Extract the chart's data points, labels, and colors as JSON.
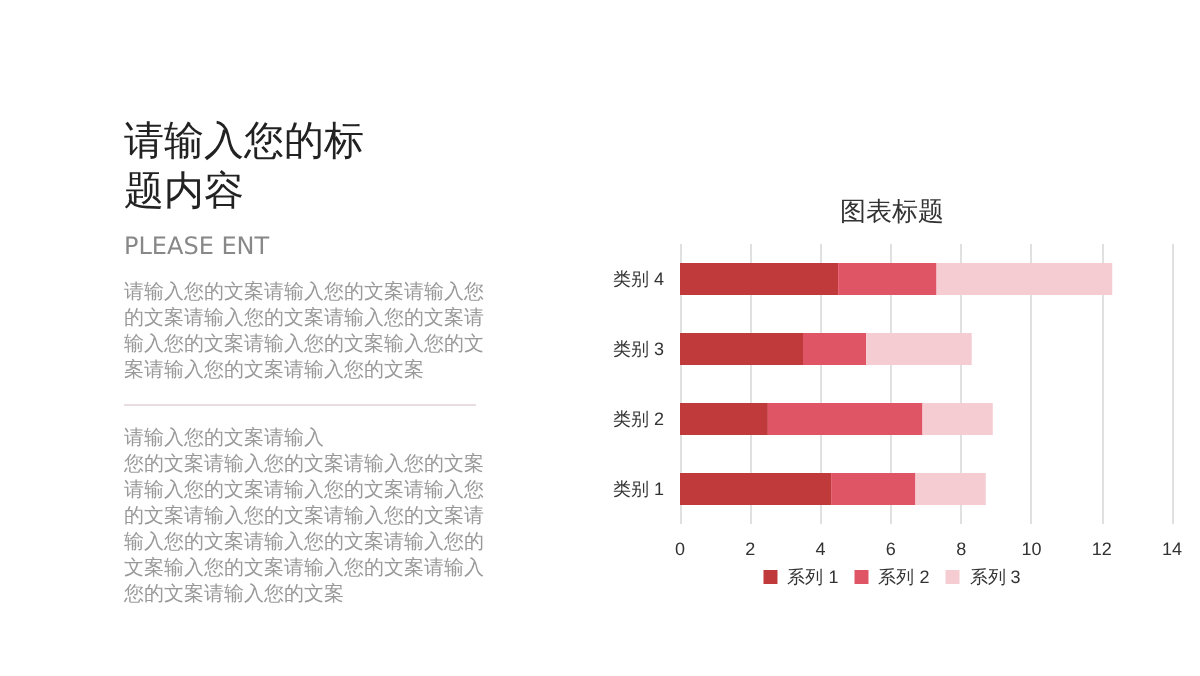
{
  "chart_data": {
    "type": "bar",
    "title": "图表标题",
    "annotations": [
      "请输入您的标题内容",
      "PLEASE ENT",
      "请输入您的文案请输入您的文案请输入您的文案请输入您的文案请输入您的文案请输入您的文案请输入您的文案输入您的文案请输入您的文案请输入您的文案",
      "请输入您的文案请输入",
      "您的文案请输入您的文案请输入您的文案请输入您的文案请输入您的文案请输入您的文案请输入您的文案请输入您的文案请输入您的文案请输入您的文案请输入您的文案输入您的文案请输入您的文案请输入您的文案请输入您的文案"
    ],
    "orientation": "horizontal",
    "stacked": true,
    "categories": [
      "类别 4",
      "类别 3",
      "类别 2",
      "类别 1"
    ],
    "series": [
      {
        "name": "系列 1",
        "color": "#c0393b",
        "values": [
          4.5,
          3.5,
          2.5,
          4.3
        ]
      },
      {
        "name": "系列 2",
        "color": "#e05566",
        "values": [
          2.8,
          1.8,
          4.4,
          2.4
        ]
      },
      {
        "name": "系列 3",
        "color": "#f6ccd3",
        "values": [
          5.0,
          3.0,
          2.0,
          2.0
        ]
      }
    ],
    "xlim": [
      0,
      14
    ],
    "xticks": [
      0,
      2,
      4,
      6,
      8,
      10,
      12,
      14
    ],
    "grid": "x",
    "legend": "bottom"
  }
}
